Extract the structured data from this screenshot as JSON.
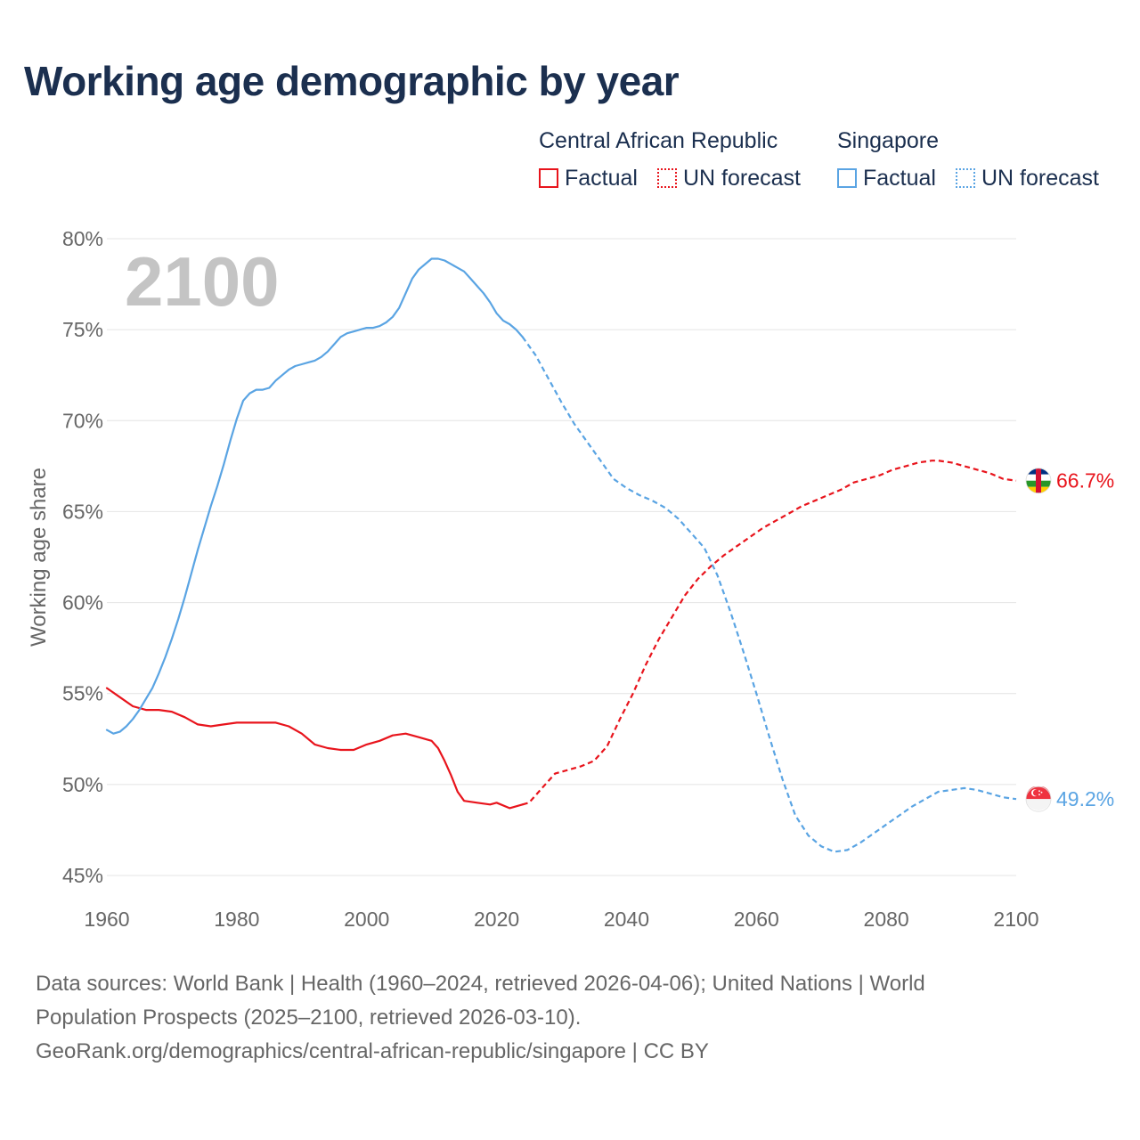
{
  "title": "Working age demographic by year",
  "legend": {
    "groups": [
      {
        "name": "Central African Republic",
        "factual_label": "Factual",
        "forecast_label": "UN forecast",
        "color": "#e8141c"
      },
      {
        "name": "Singapore",
        "factual_label": "Factual",
        "forecast_label": "UN forecast",
        "color": "#5aa4e3"
      }
    ]
  },
  "chart_data": {
    "type": "line",
    "title": "Working age demographic by year",
    "xlabel": "",
    "ylabel": "Working age share",
    "xlim": [
      1960,
      2100
    ],
    "ylim": [
      45,
      80
    ],
    "x_ticks": [
      1960,
      1980,
      2000,
      2020,
      2040,
      2060,
      2080,
      2100
    ],
    "x_tick_labels": [
      "1960",
      "1980",
      "2000",
      "2020",
      "2040",
      "2060",
      "2080",
      "2100"
    ],
    "y_ticks": [
      45,
      50,
      55,
      60,
      65,
      70,
      75,
      80
    ],
    "y_tick_labels": [
      "45%",
      "50%",
      "55%",
      "60%",
      "65%",
      "70%",
      "75%",
      "80%"
    ],
    "grid": true,
    "year_watermark": "2100",
    "forecast_start": 2024,
    "series": [
      {
        "name": "Central African Republic",
        "color": "#e8141c",
        "end_label": "66.7%",
        "flag": "central-african-republic-flag",
        "points": [
          [
            1960,
            55.3
          ],
          [
            1962,
            54.8
          ],
          [
            1964,
            54.3
          ],
          [
            1966,
            54.1
          ],
          [
            1968,
            54.1
          ],
          [
            1970,
            54.0
          ],
          [
            1972,
            53.7
          ],
          [
            1974,
            53.3
          ],
          [
            1976,
            53.2
          ],
          [
            1978,
            53.3
          ],
          [
            1980,
            53.4
          ],
          [
            1982,
            53.4
          ],
          [
            1984,
            53.4
          ],
          [
            1986,
            53.4
          ],
          [
            1988,
            53.2
          ],
          [
            1990,
            52.8
          ],
          [
            1992,
            52.2
          ],
          [
            1994,
            52.0
          ],
          [
            1996,
            51.9
          ],
          [
            1998,
            51.9
          ],
          [
            2000,
            52.2
          ],
          [
            2002,
            52.4
          ],
          [
            2004,
            52.7
          ],
          [
            2006,
            52.8
          ],
          [
            2008,
            52.6
          ],
          [
            2010,
            52.4
          ],
          [
            2011,
            52.0
          ],
          [
            2012,
            51.3
          ],
          [
            2013,
            50.5
          ],
          [
            2014,
            49.6
          ],
          [
            2015,
            49.1
          ],
          [
            2017,
            49.0
          ],
          [
            2019,
            48.9
          ],
          [
            2020,
            49.0
          ],
          [
            2022,
            48.7
          ],
          [
            2024,
            48.9
          ],
          [
            2025,
            49.0
          ],
          [
            2027,
            49.8
          ],
          [
            2029,
            50.6
          ],
          [
            2031,
            50.8
          ],
          [
            2033,
            51.0
          ],
          [
            2035,
            51.3
          ],
          [
            2037,
            52.1
          ],
          [
            2039,
            53.6
          ],
          [
            2041,
            55.0
          ],
          [
            2043,
            56.6
          ],
          [
            2045,
            58.0
          ],
          [
            2047,
            59.2
          ],
          [
            2049,
            60.4
          ],
          [
            2051,
            61.3
          ],
          [
            2053,
            62.0
          ],
          [
            2055,
            62.6
          ],
          [
            2057,
            63.1
          ],
          [
            2059,
            63.6
          ],
          [
            2061,
            64.1
          ],
          [
            2063,
            64.5
          ],
          [
            2065,
            64.9
          ],
          [
            2067,
            65.3
          ],
          [
            2069,
            65.6
          ],
          [
            2071,
            65.9
          ],
          [
            2073,
            66.2
          ],
          [
            2075,
            66.6
          ],
          [
            2077,
            66.8
          ],
          [
            2079,
            67.0
          ],
          [
            2081,
            67.3
          ],
          [
            2083,
            67.5
          ],
          [
            2085,
            67.7
          ],
          [
            2087,
            67.8
          ],
          [
            2088,
            67.8
          ],
          [
            2090,
            67.7
          ],
          [
            2092,
            67.5
          ],
          [
            2094,
            67.3
          ],
          [
            2096,
            67.1
          ],
          [
            2098,
            66.8
          ],
          [
            2100,
            66.7
          ]
        ]
      },
      {
        "name": "Singapore",
        "color": "#5aa4e3",
        "end_label": "49.2%",
        "flag": "singapore-flag",
        "points": [
          [
            1960,
            53.0
          ],
          [
            1961,
            52.8
          ],
          [
            1962,
            52.9
          ],
          [
            1963,
            53.2
          ],
          [
            1964,
            53.6
          ],
          [
            1965,
            54.1
          ],
          [
            1966,
            54.7
          ],
          [
            1967,
            55.3
          ],
          [
            1968,
            56.1
          ],
          [
            1969,
            57.0
          ],
          [
            1970,
            58.0
          ],
          [
            1971,
            59.1
          ],
          [
            1972,
            60.3
          ],
          [
            1973,
            61.6
          ],
          [
            1974,
            62.9
          ],
          [
            1975,
            64.1
          ],
          [
            1976,
            65.3
          ],
          [
            1977,
            66.4
          ],
          [
            1978,
            67.6
          ],
          [
            1979,
            68.9
          ],
          [
            1980,
            70.1
          ],
          [
            1981,
            71.1
          ],
          [
            1982,
            71.5
          ],
          [
            1983,
            71.7
          ],
          [
            1984,
            71.7
          ],
          [
            1985,
            71.8
          ],
          [
            1986,
            72.2
          ],
          [
            1987,
            72.5
          ],
          [
            1988,
            72.8
          ],
          [
            1989,
            73.0
          ],
          [
            1990,
            73.1
          ],
          [
            1991,
            73.2
          ],
          [
            1992,
            73.3
          ],
          [
            1993,
            73.5
          ],
          [
            1994,
            73.8
          ],
          [
            1995,
            74.2
          ],
          [
            1996,
            74.6
          ],
          [
            1997,
            74.8
          ],
          [
            1998,
            74.9
          ],
          [
            1999,
            75.0
          ],
          [
            2000,
            75.1
          ],
          [
            2001,
            75.1
          ],
          [
            2002,
            75.2
          ],
          [
            2003,
            75.4
          ],
          [
            2004,
            75.7
          ],
          [
            2005,
            76.2
          ],
          [
            2006,
            77.0
          ],
          [
            2007,
            77.8
          ],
          [
            2008,
            78.3
          ],
          [
            2009,
            78.6
          ],
          [
            2010,
            78.9
          ],
          [
            2011,
            78.9
          ],
          [
            2012,
            78.8
          ],
          [
            2013,
            78.6
          ],
          [
            2014,
            78.4
          ],
          [
            2015,
            78.2
          ],
          [
            2016,
            77.8
          ],
          [
            2017,
            77.4
          ],
          [
            2018,
            77.0
          ],
          [
            2019,
            76.5
          ],
          [
            2020,
            75.9
          ],
          [
            2021,
            75.5
          ],
          [
            2022,
            75.3
          ],
          [
            2023,
            75.0
          ],
          [
            2024,
            74.6
          ],
          [
            2026,
            73.6
          ],
          [
            2028,
            72.3
          ],
          [
            2030,
            71.0
          ],
          [
            2032,
            69.8
          ],
          [
            2034,
            68.8
          ],
          [
            2036,
            67.8
          ],
          [
            2038,
            66.8
          ],
          [
            2040,
            66.3
          ],
          [
            2042,
            65.9
          ],
          [
            2044,
            65.6
          ],
          [
            2046,
            65.2
          ],
          [
            2048,
            64.6
          ],
          [
            2050,
            63.8
          ],
          [
            2052,
            63.0
          ],
          [
            2054,
            61.5
          ],
          [
            2056,
            59.5
          ],
          [
            2058,
            57.3
          ],
          [
            2060,
            55.0
          ],
          [
            2062,
            52.6
          ],
          [
            2064,
            50.3
          ],
          [
            2066,
            48.3
          ],
          [
            2068,
            47.2
          ],
          [
            2070,
            46.6
          ],
          [
            2072,
            46.3
          ],
          [
            2074,
            46.4
          ],
          [
            2076,
            46.8
          ],
          [
            2078,
            47.3
          ],
          [
            2080,
            47.8
          ],
          [
            2082,
            48.3
          ],
          [
            2084,
            48.8
          ],
          [
            2086,
            49.2
          ],
          [
            2088,
            49.6
          ],
          [
            2090,
            49.7
          ],
          [
            2092,
            49.8
          ],
          [
            2094,
            49.7
          ],
          [
            2096,
            49.5
          ],
          [
            2098,
            49.3
          ],
          [
            2100,
            49.2
          ]
        ]
      }
    ]
  },
  "sources": {
    "line1": "Data sources: World Bank | Health (1960–2024, retrieved 2026-04-06); United Nations | World",
    "line2": "Population Prospects (2025–2100, retrieved 2026-03-10).",
    "line3": "GeoRank.org/demographics/central-african-republic/singapore | CC BY"
  }
}
